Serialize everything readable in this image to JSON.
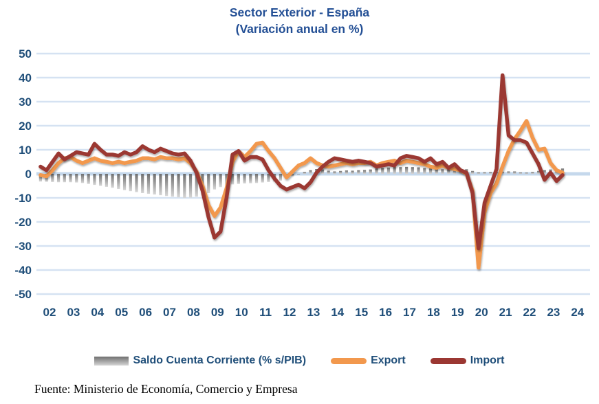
{
  "title": {
    "line1": "Sector Exterior - España",
    "line2": "(Variación anual en %)"
  },
  "source": "Fuente: Ministerio de Economía, Comercio y Empresa",
  "legend": {
    "saldo_label": "Saldo Cuenta Corriente (% s/PIB)",
    "export_label": "Export",
    "import_label": "Import"
  },
  "colors": {
    "title_text": "#234F95",
    "axis_text": "#1F4E79",
    "gridline": "#D5E2F2",
    "zero_line": "#C5D8EC",
    "export": "#F2984D",
    "import": "#9B3732",
    "bar_top": "#6F6F6F",
    "bar_bottom": "#D6D6D6",
    "source_text": "#000000"
  },
  "chart_data": {
    "type": "combo_bar_line",
    "title": "Sector Exterior - España (Variación anual en %)",
    "x_unit": "year (quarterly steps)",
    "x_start": 2002.0,
    "x_step": 0.25,
    "n_points": 88,
    "x_tick_labels": [
      "02",
      "03",
      "04",
      "05",
      "06",
      "07",
      "08",
      "09",
      "10",
      "11",
      "12",
      "13",
      "14",
      "15",
      "16",
      "17",
      "18",
      "19",
      "20",
      "21",
      "22",
      "23",
      "24"
    ],
    "y_ticks": [
      50,
      40,
      30,
      20,
      10,
      0,
      -10,
      -20,
      -30,
      -40,
      -50
    ],
    "ylim": [
      -50,
      50
    ],
    "grid": true,
    "legend_position": "bottom",
    "series": [
      {
        "name": "Saldo Cuenta Corriente (% s/PIB)",
        "type": "bar",
        "values": [
          -3.2,
          -3.3,
          -3.4,
          -3.5,
          -3.5,
          -3.5,
          -3.6,
          -3.8,
          -4.2,
          -4.6,
          -5.0,
          -5.4,
          -5.8,
          -6.3,
          -6.8,
          -7.2,
          -7.6,
          -8.0,
          -8.3,
          -8.6,
          -8.9,
          -9.2,
          -9.5,
          -9.8,
          -10.0,
          -9.9,
          -9.5,
          -9.0,
          -8.0,
          -6.5,
          -5.5,
          -4.8,
          -4.4,
          -4.2,
          -4.0,
          -3.9,
          -3.8,
          -3.6,
          -3.4,
          -3.2,
          -2.8,
          -2.0,
          -1.0,
          -0.3,
          0.8,
          1.5,
          2.0,
          1.8,
          1.3,
          1.0,
          1.2,
          1.4,
          1.3,
          1.5,
          1.6,
          1.8,
          2.2,
          2.4,
          2.6,
          2.8,
          2.8,
          2.9,
          2.8,
          2.7,
          2.4,
          2.2,
          2.0,
          1.9,
          2.0,
          2.1,
          2.0,
          1.9,
          1.2,
          0.6,
          0.7,
          0.8,
          0.8,
          0.9,
          1.0,
          1.0,
          0.6,
          0.5,
          0.8,
          1.2,
          1.5,
          1.8,
          2.0,
          2.2
        ]
      },
      {
        "name": "Export",
        "type": "line",
        "values": [
          -0.5,
          -1.0,
          1.5,
          4.5,
          6.5,
          7.0,
          5.5,
          4.5,
          5.5,
          6.5,
          5.5,
          5.0,
          4.5,
          5.0,
          4.5,
          5.0,
          5.5,
          6.5,
          6.5,
          6.0,
          7.0,
          6.5,
          6.5,
          6.0,
          6.5,
          4.5,
          1.0,
          -5.0,
          -13.0,
          -17.5,
          -14.0,
          -6.0,
          5.0,
          9.5,
          7.0,
          9.5,
          12.5,
          13.0,
          9.5,
          6.5,
          2.5,
          -1.5,
          1.0,
          3.5,
          4.5,
          6.5,
          4.5,
          3.5,
          3.0,
          3.5,
          4.0,
          4.5,
          4.0,
          4.5,
          4.5,
          5.0,
          3.5,
          4.5,
          5.0,
          5.5,
          4.5,
          5.5,
          5.0,
          4.5,
          4.0,
          3.0,
          2.5,
          3.5,
          2.5,
          2.0,
          1.5,
          0.0,
          -7.0,
          -39.0,
          -16.0,
          -8.0,
          -4.0,
          3.0,
          9.5,
          14.5,
          18.0,
          22.0,
          15.0,
          10.0,
          10.5,
          4.5,
          1.5,
          0.5
        ]
      },
      {
        "name": "Import",
        "type": "line",
        "values": [
          3.0,
          1.5,
          5.0,
          8.5,
          6.0,
          7.5,
          9.0,
          8.5,
          8.0,
          12.5,
          10.0,
          8.0,
          8.0,
          7.5,
          9.0,
          8.0,
          9.0,
          11.5,
          10.0,
          9.0,
          10.5,
          9.5,
          8.5,
          8.0,
          8.5,
          5.5,
          0.5,
          -7.0,
          -18.0,
          -26.5,
          -24.0,
          -10.0,
          8.0,
          9.5,
          5.5,
          7.0,
          7.0,
          6.0,
          1.5,
          -2.0,
          -5.0,
          -6.5,
          -5.5,
          -4.5,
          -6.0,
          -3.5,
          0.5,
          3.0,
          5.0,
          6.5,
          6.0,
          5.5,
          5.0,
          5.5,
          5.0,
          4.5,
          3.0,
          3.5,
          4.0,
          3.5,
          6.5,
          7.5,
          7.0,
          6.5,
          5.0,
          6.5,
          4.0,
          5.0,
          2.5,
          4.0,
          1.5,
          0.5,
          -8.0,
          -31.0,
          -12.0,
          -5.0,
          2.0,
          41.0,
          16.0,
          14.0,
          14.0,
          13.0,
          8.5,
          4.0,
          -2.5,
          0.5,
          -3.0,
          -0.5
        ]
      }
    ]
  }
}
